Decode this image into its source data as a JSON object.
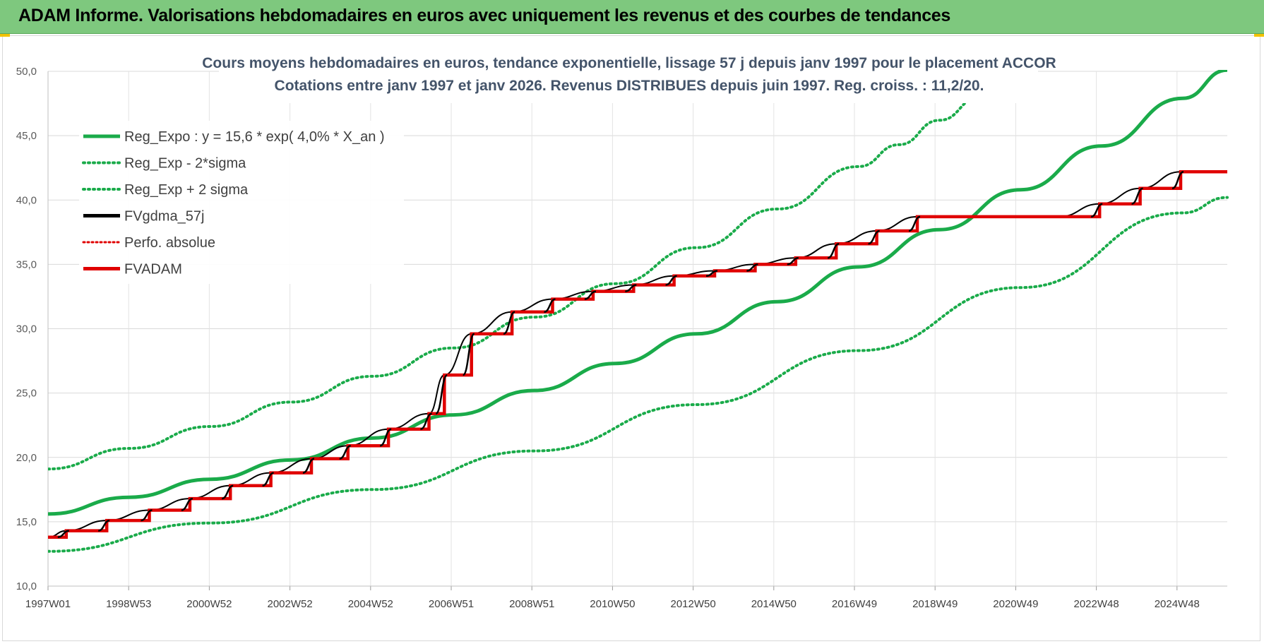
{
  "banner": {
    "title": "ADAM Informe. Valorisations hebdomadaires en euros avec uniquement les revenus et des courbes de tendances"
  },
  "chart_data": {
    "type": "line",
    "title_line1": "Cours moyens hebdomadaires en euros, tendance exponentielle, lissage 57 j depuis janv 1997 pour le placement ACCOR",
    "title_line2": "Cotations entre janv 1997 et janv 2026. Revenus DISTRIBUES depuis juin 1997. Reg. croiss. : 11,2/20.",
    "ylim": [
      10,
      50
    ],
    "yticks": [
      "10,0",
      "15,0",
      "20,0",
      "25,0",
      "30,0",
      "35,0",
      "40,0",
      "45,0",
      "50,0"
    ],
    "xlim": [
      1997.0,
      2026.1
    ],
    "xticks": [
      "1997W01",
      "1998W53",
      "2000W52",
      "2002W52",
      "2004W52",
      "2006W51",
      "2008W51",
      "2010W50",
      "2012W50",
      "2014W50",
      "2016W49",
      "2018W49",
      "2020W49",
      "2022W48",
      "2024W48"
    ],
    "grid": true,
    "legend_position": "top-left",
    "colors": {
      "reg_expo": "#1aab4a",
      "sigma": "#1aab4a",
      "fvgdma": "#000000",
      "perfo": "#e00000",
      "fvadam": "#e00000"
    },
    "series": [
      {
        "name": "Reg_Expo : y = 15,6 * exp( 4,0% *  X_an )",
        "style": "solid-thick",
        "x": [
          1997.0,
          1999.0,
          2001.0,
          2003.0,
          2005.0,
          2007.0,
          2009.0,
          2011.0,
          2013.0,
          2015.0,
          2017.0,
          2019.0,
          2021.0,
          2023.0,
          2025.0,
          2026.1
        ],
        "y": [
          15.6,
          16.9,
          18.3,
          19.8,
          21.5,
          23.3,
          25.2,
          27.3,
          29.6,
          32.1,
          34.8,
          37.7,
          40.8,
          44.2,
          47.9,
          50.1
        ]
      },
      {
        "name": "Reg_Exp - 2*sigma",
        "style": "dotted",
        "x": [
          1997.0,
          2001.0,
          2005.0,
          2009.0,
          2013.0,
          2017.0,
          2021.0,
          2025.0,
          2026.1
        ],
        "y": [
          12.7,
          14.9,
          17.5,
          20.5,
          24.1,
          28.3,
          33.2,
          39.0,
          40.2
        ]
      },
      {
        "name": "Reg_Exp + 2 sigma",
        "style": "dotted",
        "x": [
          1997.0,
          1999.0,
          2001.0,
          2003.0,
          2005.0,
          2007.0,
          2009.0,
          2011.0,
          2013.0,
          2015.0,
          2017.0,
          2018.0,
          2019.0,
          2020.0
        ],
        "y": [
          19.1,
          20.7,
          22.4,
          24.3,
          26.3,
          28.5,
          30.9,
          33.5,
          36.3,
          39.3,
          42.6,
          44.3,
          46.2,
          48.0
        ]
      },
      {
        "name": "FVgdma_57j",
        "style": "solid",
        "x": [
          1997.0,
          1997.45,
          1998.45,
          1999.5,
          2000.5,
          2001.5,
          2002.5,
          2003.5,
          2004.4,
          2005.4,
          2006.4,
          2006.78,
          2007.45,
          2008.45,
          2009.45,
          2010.45,
          2011.45,
          2012.45,
          2013.45,
          2014.45,
          2015.45,
          2016.45,
          2017.45,
          2018.45,
          2021.95,
          2022.95,
          2023.95,
          2024.95,
          2026.1
        ],
        "y": [
          13.8,
          14.3,
          15.1,
          15.9,
          16.8,
          17.8,
          18.8,
          19.9,
          20.9,
          22.2,
          23.4,
          26.4,
          29.6,
          31.3,
          32.3,
          32.9,
          33.4,
          34.1,
          34.5,
          35.0,
          35.5,
          36.6,
          37.6,
          38.7,
          38.7,
          39.7,
          40.9,
          42.2,
          42.2
        ]
      },
      {
        "name": "Perfo. absolue",
        "style": "dotted",
        "x": [],
        "y": []
      },
      {
        "name": "FVADAM",
        "style": "step-thick",
        "x": [
          1997.0,
          1997.45,
          1998.45,
          1999.5,
          2000.5,
          2001.5,
          2002.5,
          2003.5,
          2004.4,
          2005.4,
          2006.4,
          2006.78,
          2007.45,
          2008.45,
          2009.45,
          2010.45,
          2011.45,
          2012.45,
          2013.45,
          2014.45,
          2015.45,
          2016.45,
          2017.45,
          2018.45,
          2021.95,
          2022.95,
          2023.95,
          2024.95,
          2026.1
        ],
        "y": [
          13.8,
          14.3,
          15.1,
          15.9,
          16.8,
          17.8,
          18.8,
          19.9,
          20.9,
          22.2,
          23.4,
          26.4,
          29.6,
          31.3,
          32.3,
          32.9,
          33.4,
          34.1,
          34.5,
          35.0,
          35.5,
          36.6,
          37.6,
          38.7,
          38.7,
          39.7,
          40.9,
          42.2,
          42.2
        ]
      }
    ]
  }
}
